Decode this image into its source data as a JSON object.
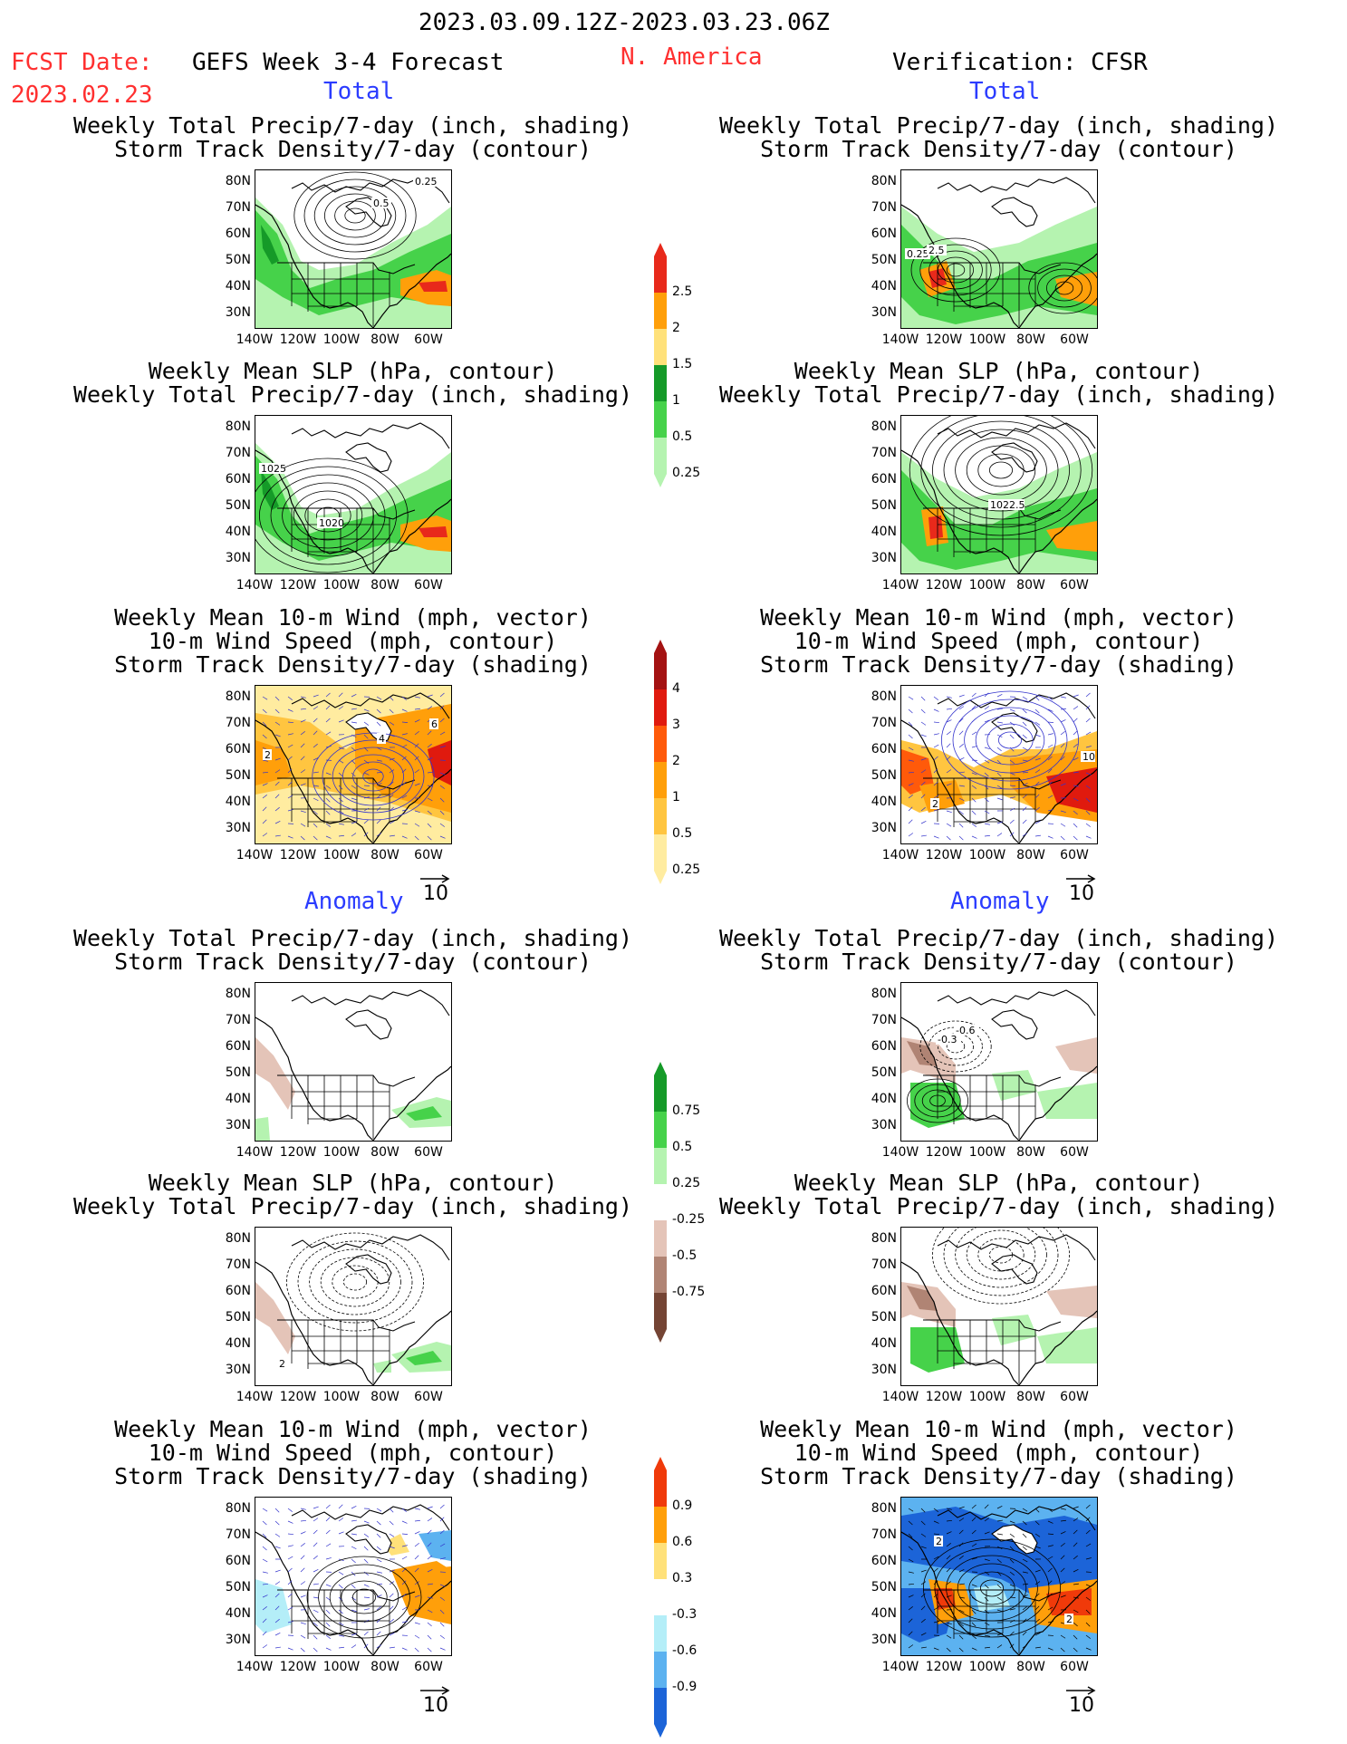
{
  "header": {
    "date_range": "2023.03.09.12Z-2023.03.23.06Z",
    "fcst_label": "FCST Date:",
    "fcst_date": "2023.02.23",
    "model_title": "GEFS Week 3-4 Forecast",
    "region": "N. America",
    "verification": "Verification: CFSR"
  },
  "sections": {
    "total": "Total",
    "anomaly": "Anomaly"
  },
  "panel_titles": {
    "precip_storm": [
      "Weekly Total Precip/7-day (inch, shading)",
      "Storm Track Density/7-day (contour)"
    ],
    "slp_precip": [
      "Weekly Mean SLP (hPa, contour)",
      "Weekly Total Precip/7-day (inch, shading)"
    ],
    "wind_storm": [
      "Weekly Mean 10-m Wind (mph, vector)",
      "10-m Wind Speed (mph, contour)",
      "Storm Track Density/7-day (shading)"
    ]
  },
  "axes": {
    "lat_ticks": [
      "80N",
      "70N",
      "60N",
      "50N",
      "40N",
      "30N"
    ],
    "lon_ticks": [
      "140W",
      "120W",
      "100W",
      "80W",
      "60W"
    ]
  },
  "vector_ref": "10",
  "map_labels": {
    "lt1": [
      "0.25",
      "0.5"
    ],
    "rt1": [
      "0.25",
      "2.5"
    ],
    "lt2": [
      "1025",
      "1020"
    ],
    "rt2": [
      "1022.5"
    ],
    "lt3": [
      "2",
      "4",
      "6"
    ],
    "rt3": [
      "2",
      "10"
    ],
    "ra1": [
      "-0.3",
      "-0.6"
    ],
    "la2": [
      "2"
    ],
    "ra3": [
      "2",
      "2"
    ]
  },
  "colorbars": {
    "precip_total": {
      "labels": [
        "2.5",
        "2",
        "1.5",
        "1",
        "0.5",
        "0.25"
      ],
      "colors": [
        "#e8291b",
        "#ff9f0a",
        "#ffe17a",
        "#159a28",
        "#46d24a",
        "#b5f3b0"
      ]
    },
    "storm_total": {
      "labels": [
        "4",
        "3",
        "2",
        "1",
        "0.5",
        "0.25"
      ],
      "colors": [
        "#a41212",
        "#e01a0e",
        "#ff5a0a",
        "#ff9f0a",
        "#ffc540",
        "#ffeca0"
      ]
    },
    "precip_anom": {
      "labels": [
        "0.75",
        "0.5",
        "0.25",
        "-0.25",
        "-0.5",
        "-0.75"
      ],
      "colors": [
        "#159a28",
        "#46d24a",
        "#b5f3b0",
        "#ffffff",
        "#e4c4b8",
        "#b08474",
        "#744434"
      ]
    },
    "storm_anom": {
      "labels": [
        "0.9",
        "0.6",
        "0.3",
        "-0.3",
        "-0.6",
        "-0.9"
      ],
      "colors": [
        "#f03a0a",
        "#ff9f0a",
        "#ffe17a",
        "#ffffff",
        "#b4eef8",
        "#5cb2f0",
        "#1c64d8"
      ]
    }
  },
  "colors": {
    "red_text": "#ff3030",
    "blue_text": "#2b3cff",
    "precip_green": "#46d24a",
    "storm_orange": "#ff9f0a",
    "anom_brown": "#e4c4b8",
    "anom_blue": "#1c64d8"
  }
}
